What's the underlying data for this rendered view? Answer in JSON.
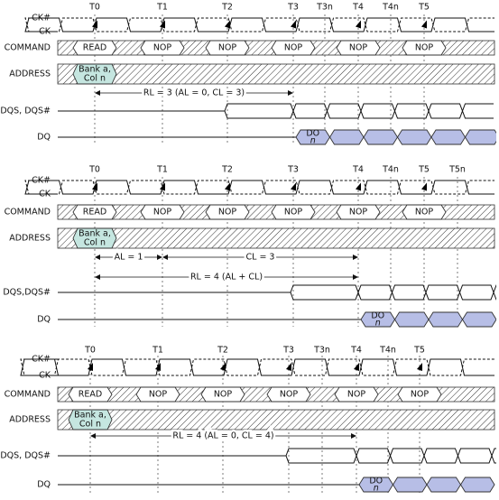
{
  "panels": [
    {
      "time_labels": [
        "T0",
        "T1",
        "T2",
        "T3",
        "T3n",
        "T4",
        "T4n",
        "T5"
      ],
      "signal_labels": [
        "CK#",
        "CK",
        "COMMAND",
        "ADDRESS",
        "DQS, DQS#",
        "DQ"
      ],
      "commands": [
        "READ",
        "NOP",
        "NOP",
        "NOP",
        "NOP",
        "NOP"
      ],
      "address": [
        "Bank a,",
        "Col n"
      ],
      "annotations": [
        "RL = 3 (AL = 0, CL = 3)"
      ],
      "data_out": [
        "DO",
        "n"
      ]
    },
    {
      "time_labels": [
        "T0",
        "T1",
        "T2",
        "T3",
        "T4",
        "T4n",
        "T5",
        "T5n"
      ],
      "signal_labels": [
        "CK#",
        "CK",
        "COMMAND",
        "ADDRESS",
        "DQS,DQS#",
        "DQ"
      ],
      "commands": [
        "READ",
        "NOP",
        "NOP",
        "NOP",
        "NOP",
        "NOP"
      ],
      "address": [
        "Bank a,",
        "Col n"
      ],
      "annotations": [
        "AL = 1",
        "CL = 3",
        "RL = 4 (AL + CL)"
      ],
      "data_out": [
        "DO",
        "n"
      ]
    },
    {
      "time_labels": [
        "T0",
        "T1",
        "T2",
        "T3",
        "T3n",
        "T4",
        "T4n",
        "T5"
      ],
      "signal_labels": [
        "CK#",
        "CK",
        "COMMAND",
        "ADDRESS",
        "DQS, DQS#",
        "DQ"
      ],
      "commands": [
        "READ",
        "NOP",
        "NOP",
        "NOP",
        "NOP",
        "NOP"
      ],
      "address": [
        "Bank a,",
        "Col n"
      ],
      "annotations": [
        "RL = 4 (AL = 0, CL = 4)"
      ],
      "data_out": [
        "DO",
        "n"
      ]
    }
  ]
}
